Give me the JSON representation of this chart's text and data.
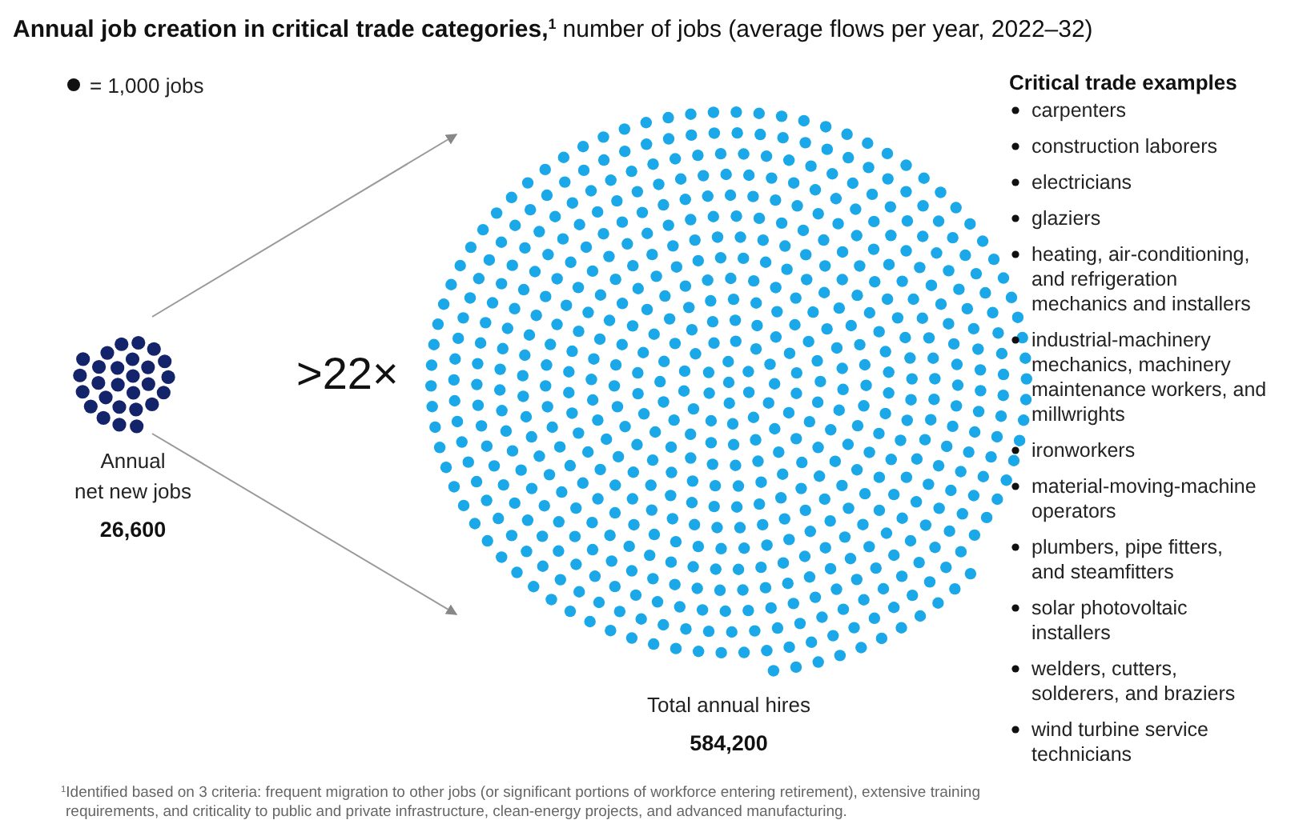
{
  "chart_data": {
    "type": "other",
    "title": "Annual job creation in critical trade categories,$^{1}$",
    "subtitle": "number of jobs (average flows per year, 2022–32)",
    "categories": [
      "Annual net new jobs",
      "Total annual hires"
    ],
    "values": [
      26600,
      584200
    ],
    "value_labels": [
      "26,600",
      "584,200"
    ],
    "colors": [
      "#14246b",
      "#1ba8e8"
    ],
    "legend_title": "Critical trade examples",
    "annotations": [
      "= 1,000 jobs",
      ">22×",
      "carpenters",
      "construction laborers",
      "electricians",
      "glaziers",
      "heating, air-conditioning, and refrigeration mechanics and installers",
      "industrial-machinery mechanics, machinery maintenance workers, and millwrights",
      "ironworkers",
      "material-moving-machine operators",
      "plumbers, pipe fitters, and steamfitters",
      "solar photovoltaic installers",
      "welders, cutters, solderers, and braziers",
      "wind turbine service technicians",
      "$^{1}$Identified based on 3 criteria: frequent migration to other jobs (or significant portions of workforce entering retirement), extensive training requirements, and criticality to public and private infrastructure, clean-energy projects, and advanced manufacturing."
    ]
  }
}
